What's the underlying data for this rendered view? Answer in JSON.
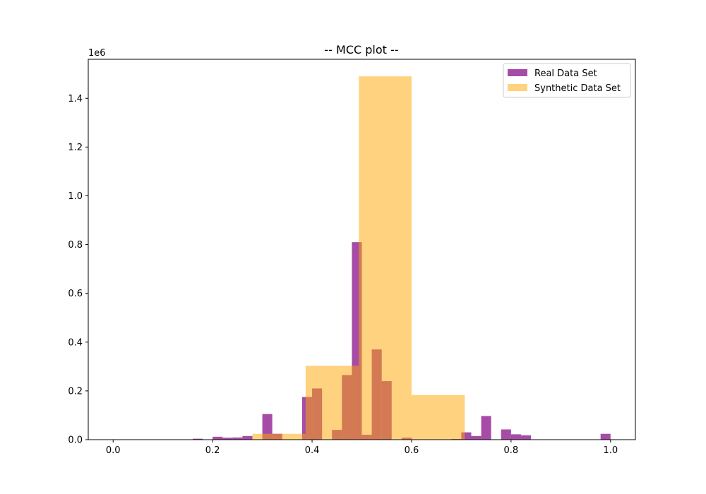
{
  "chart_data": {
    "type": "bar",
    "title": "-- MCC plot --",
    "xlabel": "",
    "ylabel": "",
    "y_scale_label": "1e6",
    "xlim": [
      -0.05,
      1.05
    ],
    "ylim": [
      0,
      1.56
    ],
    "x_ticks": [
      0.0,
      0.2,
      0.4,
      0.6,
      0.8,
      1.0
    ],
    "x_tick_labels": [
      "0.0",
      "0.2",
      "0.4",
      "0.6",
      "0.8",
      "1.0"
    ],
    "y_ticks": [
      0.0,
      0.2,
      0.4,
      0.6,
      0.8,
      1.0,
      1.2,
      1.4
    ],
    "y_tick_labels": [
      "0.0",
      "0.2",
      "0.4",
      "0.6",
      "0.8",
      "1.0",
      "1.2",
      "1.4"
    ],
    "legend_position": "top-right",
    "series": [
      {
        "name": "Real Data Set",
        "color": "#800080",
        "opacity": 0.7,
        "bins": [
          {
            "x0": 0.16,
            "x1": 0.18,
            "value": 0.004
          },
          {
            "x0": 0.2,
            "x1": 0.22,
            "value": 0.012
          },
          {
            "x0": 0.22,
            "x1": 0.24,
            "value": 0.008
          },
          {
            "x0": 0.24,
            "x1": 0.26,
            "value": 0.009
          },
          {
            "x0": 0.26,
            "x1": 0.28,
            "value": 0.015
          },
          {
            "x0": 0.3,
            "x1": 0.32,
            "value": 0.105
          },
          {
            "x0": 0.32,
            "x1": 0.34,
            "value": 0.024
          },
          {
            "x0": 0.38,
            "x1": 0.4,
            "value": 0.175
          },
          {
            "x0": 0.4,
            "x1": 0.42,
            "value": 0.21
          },
          {
            "x0": 0.44,
            "x1": 0.46,
            "value": 0.04
          },
          {
            "x0": 0.46,
            "x1": 0.48,
            "value": 0.265
          },
          {
            "x0": 0.48,
            "x1": 0.5,
            "value": 0.81
          },
          {
            "x0": 0.5,
            "x1": 0.52,
            "value": 0.02
          },
          {
            "x0": 0.52,
            "x1": 0.54,
            "value": 0.37
          },
          {
            "x0": 0.54,
            "x1": 0.56,
            "value": 0.24
          },
          {
            "x0": 0.58,
            "x1": 0.6,
            "value": 0.008
          },
          {
            "x0": 0.68,
            "x1": 0.7,
            "value": 0.003
          },
          {
            "x0": 0.7,
            "x1": 0.72,
            "value": 0.03
          },
          {
            "x0": 0.72,
            "x1": 0.74,
            "value": 0.015
          },
          {
            "x0": 0.74,
            "x1": 0.76,
            "value": 0.097
          },
          {
            "x0": 0.78,
            "x1": 0.8,
            "value": 0.042
          },
          {
            "x0": 0.8,
            "x1": 0.82,
            "value": 0.022
          },
          {
            "x0": 0.82,
            "x1": 0.84,
            "value": 0.018
          },
          {
            "x0": 0.98,
            "x1": 1.0,
            "value": 0.024
          }
        ]
      },
      {
        "name": "Synthetic Data Set",
        "color": "#FFA500",
        "opacity": 0.5,
        "bins": [
          {
            "x0": 0.28,
            "x1": 0.387,
            "value": 0.024
          },
          {
            "x0": 0.387,
            "x1": 0.494,
            "value": 0.303
          },
          {
            "x0": 0.494,
            "x1": 0.6,
            "value": 1.49
          },
          {
            "x0": 0.6,
            "x1": 0.707,
            "value": 0.183
          }
        ]
      }
    ]
  }
}
